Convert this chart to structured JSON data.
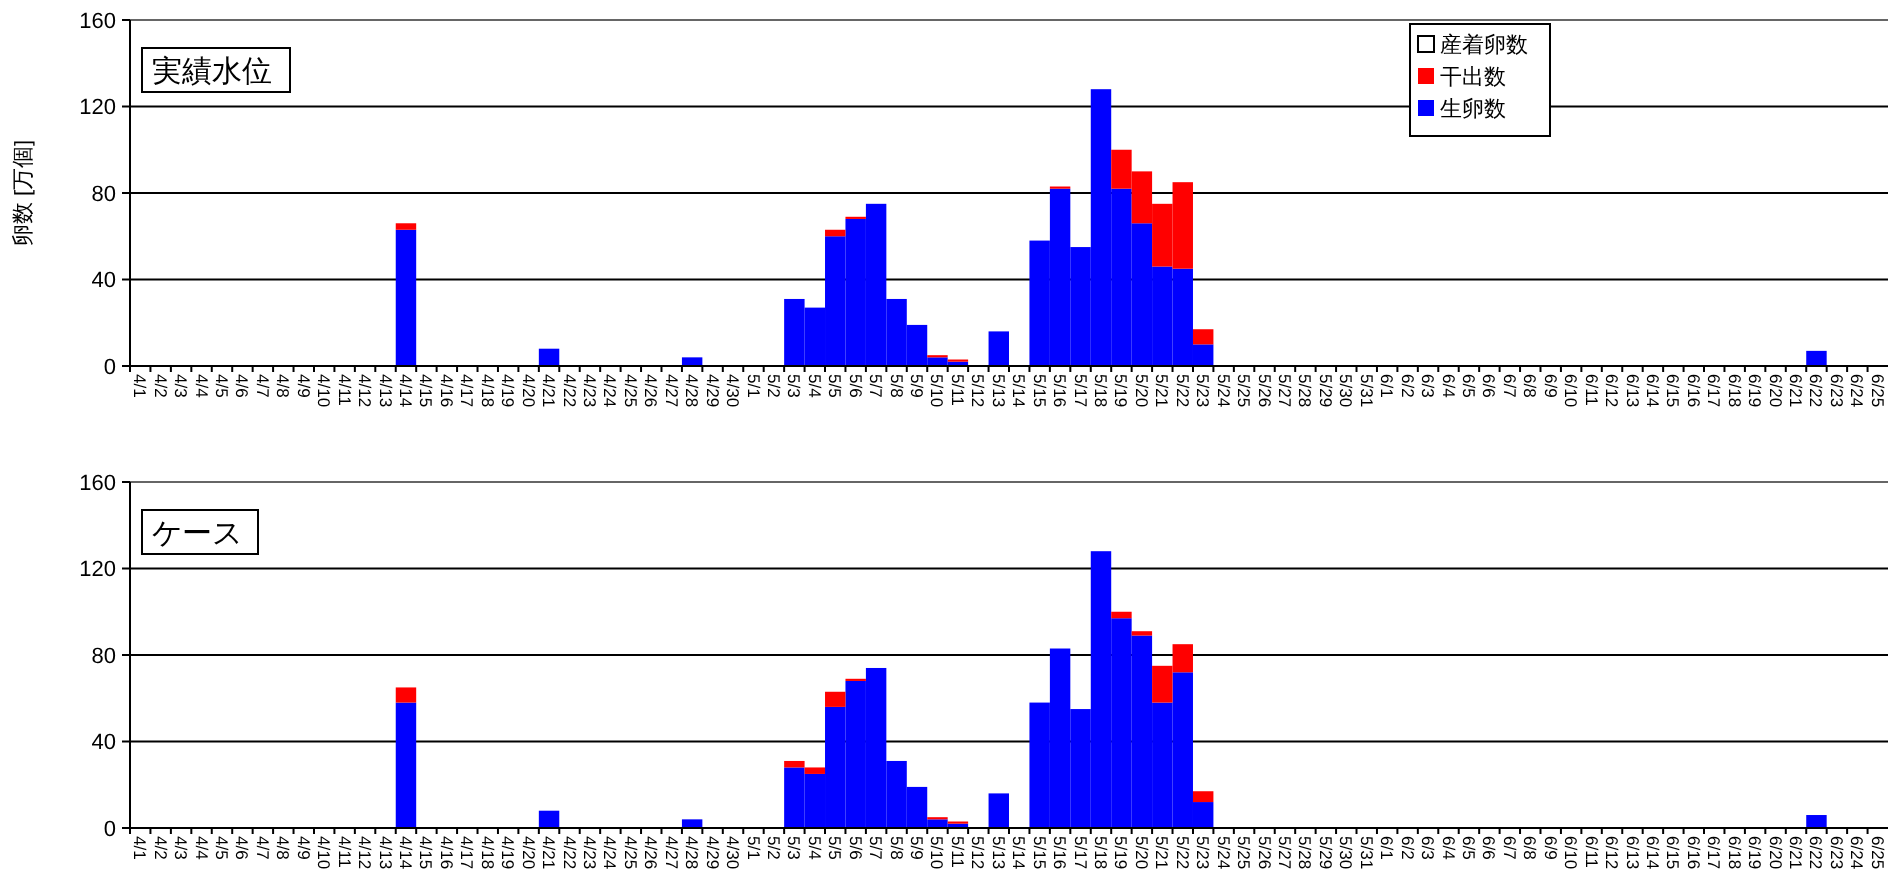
{
  "chart_data": [
    {
      "type": "bar",
      "title": "実績水位",
      "ylabel": "卵数 [万個]",
      "stacked": true,
      "grid": "y",
      "legend": "top right",
      "ylim": [
        0,
        160
      ],
      "yticks": [
        0,
        40,
        80,
        120,
        160
      ],
      "categories": [
        "4/1",
        "4/2",
        "4/3",
        "4/4",
        "4/5",
        "4/6",
        "4/7",
        "4/8",
        "4/9",
        "4/10",
        "4/11",
        "4/12",
        "4/13",
        "4/14",
        "4/15",
        "4/16",
        "4/17",
        "4/18",
        "4/19",
        "4/20",
        "4/21",
        "4/22",
        "4/23",
        "4/24",
        "4/25",
        "4/26",
        "4/27",
        "4/28",
        "4/29",
        "4/30",
        "5/1",
        "5/2",
        "5/3",
        "5/4",
        "5/5",
        "5/6",
        "5/7",
        "5/8",
        "5/9",
        "5/10",
        "5/11",
        "5/12",
        "5/13",
        "5/14",
        "5/15",
        "5/16",
        "5/17",
        "5/18",
        "5/19",
        "5/20",
        "5/21",
        "5/22",
        "5/23",
        "5/24",
        "5/25",
        "5/26",
        "5/27",
        "5/28",
        "5/29",
        "5/30",
        "5/31",
        "6/1",
        "6/2",
        "6/3",
        "6/4",
        "6/5",
        "6/6",
        "6/7",
        "6/8",
        "6/9",
        "6/10",
        "6/11",
        "6/12",
        "6/13",
        "6/14",
        "6/15",
        "6/16",
        "6/17",
        "6/18",
        "6/19",
        "6/20",
        "6/21",
        "6/22",
        "6/23",
        "6/24",
        "6/25"
      ],
      "series": [
        {
          "name": "生卵数",
          "color": "#0000ff",
          "values": [
            0,
            0,
            0,
            0,
            0,
            0,
            0,
            0,
            0,
            0,
            0,
            0,
            0,
            63,
            0,
            0,
            0,
            0,
            0,
            0,
            8,
            0,
            0,
            0,
            0,
            0,
            0,
            4,
            0,
            0,
            0,
            0,
            31,
            27,
            60,
            68,
            75,
            31,
            19,
            4,
            2,
            0,
            16,
            0,
            58,
            82,
            55,
            128,
            82,
            66,
            46,
            45,
            10,
            0,
            0,
            0,
            0,
            0,
            0,
            0,
            0,
            0,
            0,
            0,
            0,
            0,
            0,
            0,
            0,
            0,
            0,
            0,
            0,
            0,
            0,
            0,
            0,
            0,
            0,
            0,
            0,
            0,
            7,
            0,
            0,
            0
          ]
        },
        {
          "name": "干出数",
          "color": "#ff0000",
          "values": [
            0,
            0,
            0,
            0,
            0,
            0,
            0,
            0,
            0,
            0,
            0,
            0,
            0,
            3,
            0,
            0,
            0,
            0,
            0,
            0,
            0,
            0,
            0,
            0,
            0,
            0,
            0,
            0,
            0,
            0,
            0,
            0,
            0,
            0,
            3,
            1,
            0,
            0,
            0,
            1,
            1,
            0,
            0,
            0,
            0,
            1,
            0,
            0,
            18,
            24,
            29,
            40,
            7,
            0,
            0,
            0,
            0,
            0,
            0,
            0,
            0,
            0,
            0,
            0,
            0,
            0,
            0,
            0,
            0,
            0,
            0,
            0,
            0,
            0,
            0,
            0,
            0,
            0,
            0,
            0,
            0,
            0,
            0,
            0,
            0,
            0
          ]
        },
        {
          "name": "産着卵数",
          "color": "#ffffff",
          "values": [
            null,
            null,
            null,
            null,
            null,
            null,
            null,
            null,
            null,
            null,
            null,
            null,
            null,
            null,
            null,
            null,
            null,
            null,
            null,
            null,
            null,
            null,
            null,
            null,
            null,
            null,
            null,
            null,
            null,
            null,
            null,
            null,
            null,
            null,
            null,
            null,
            null,
            null,
            null,
            null,
            null,
            null,
            null,
            null,
            null,
            null,
            null,
            null,
            null,
            null,
            null,
            null,
            null,
            null,
            null,
            null,
            null,
            null,
            null,
            null,
            null,
            null,
            null,
            null,
            null,
            null,
            null,
            null,
            null,
            null,
            null,
            null,
            null,
            null,
            null,
            null,
            null,
            null,
            null,
            null,
            null,
            null,
            null,
            null,
            null,
            null
          ]
        }
      ]
    },
    {
      "type": "bar",
      "title": "ケース",
      "stacked": true,
      "grid": "y",
      "ylim": [
        0,
        160
      ],
      "yticks": [
        0,
        40,
        80,
        120,
        160
      ],
      "categories": [
        "4/1",
        "4/2",
        "4/3",
        "4/4",
        "4/5",
        "4/6",
        "4/7",
        "4/8",
        "4/9",
        "4/10",
        "4/11",
        "4/12",
        "4/13",
        "4/14",
        "4/15",
        "4/16",
        "4/17",
        "4/18",
        "4/19",
        "4/20",
        "4/21",
        "4/22",
        "4/23",
        "4/24",
        "4/25",
        "4/26",
        "4/27",
        "4/28",
        "4/29",
        "4/30",
        "5/1",
        "5/2",
        "5/3",
        "5/4",
        "5/5",
        "5/6",
        "5/7",
        "5/8",
        "5/9",
        "5/10",
        "5/11",
        "5/12",
        "5/13",
        "5/14",
        "5/15",
        "5/16",
        "5/17",
        "5/18",
        "5/19",
        "5/20",
        "5/21",
        "5/22",
        "5/23",
        "5/24",
        "5/25",
        "5/26",
        "5/27",
        "5/28",
        "5/29",
        "5/30",
        "5/31",
        "6/1",
        "6/2",
        "6/3",
        "6/4",
        "6/5",
        "6/6",
        "6/7",
        "6/8",
        "6/9",
        "6/10",
        "6/11",
        "6/12",
        "6/13",
        "6/14",
        "6/15",
        "6/16",
        "6/17",
        "6/18",
        "6/19",
        "6/20",
        "6/21",
        "6/22",
        "6/23",
        "6/24",
        "6/25"
      ],
      "series": [
        {
          "color": "#0000ff",
          "values": [
            0,
            0,
            0,
            0,
            0,
            0,
            0,
            0,
            0,
            0,
            0,
            0,
            0,
            58,
            0,
            0,
            0,
            0,
            0,
            0,
            8,
            0,
            0,
            0,
            0,
            0,
            0,
            4,
            0,
            0,
            0,
            0,
            28,
            25,
            56,
            68,
            74,
            31,
            19,
            4,
            2,
            0,
            16,
            0,
            58,
            83,
            55,
            128,
            97,
            89,
            58,
            72,
            12,
            0,
            0,
            0,
            0,
            0,
            0,
            0,
            0,
            0,
            0,
            0,
            0,
            0,
            0,
            0,
            0,
            0,
            0,
            0,
            0,
            0,
            0,
            0,
            0,
            0,
            0,
            0,
            0,
            0,
            6,
            0,
            0,
            0
          ]
        },
        {
          "color": "#ff0000",
          "values": [
            0,
            0,
            0,
            0,
            0,
            0,
            0,
            0,
            0,
            0,
            0,
            0,
            0,
            7,
            0,
            0,
            0,
            0,
            0,
            0,
            0,
            0,
            0,
            0,
            0,
            0,
            0,
            0,
            0,
            0,
            0,
            0,
            3,
            3,
            7,
            1,
            0,
            0,
            0,
            1,
            1,
            0,
            0,
            0,
            0,
            0,
            0,
            0,
            3,
            2,
            17,
            13,
            5,
            0,
            0,
            0,
            0,
            0,
            0,
            0,
            0,
            0,
            0,
            0,
            0,
            0,
            0,
            0,
            0,
            0,
            0,
            0,
            0,
            0,
            0,
            0,
            0,
            0,
            0,
            0,
            0,
            0,
            0,
            0,
            0,
            0
          ]
        }
      ]
    }
  ]
}
